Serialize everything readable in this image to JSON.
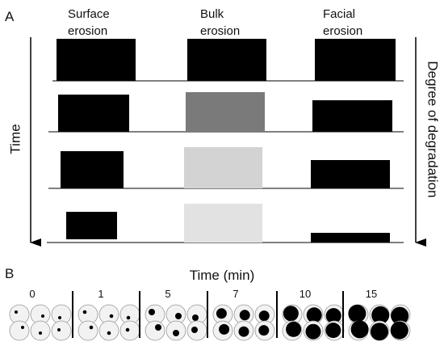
{
  "panel_a": {
    "label": "A",
    "columns": [
      {
        "line1": "Surface",
        "line2": "erosion"
      },
      {
        "line1": "Bulk",
        "line2": "erosion"
      },
      {
        "line1": "Facial",
        "line2": "erosion"
      }
    ],
    "left_axis": "Time",
    "right_axis": "Degree of degradation"
  },
  "panel_b": {
    "label": "B",
    "title": "Time (min)",
    "times": [
      "0",
      "1",
      "5",
      "7",
      "10",
      "15"
    ]
  }
}
